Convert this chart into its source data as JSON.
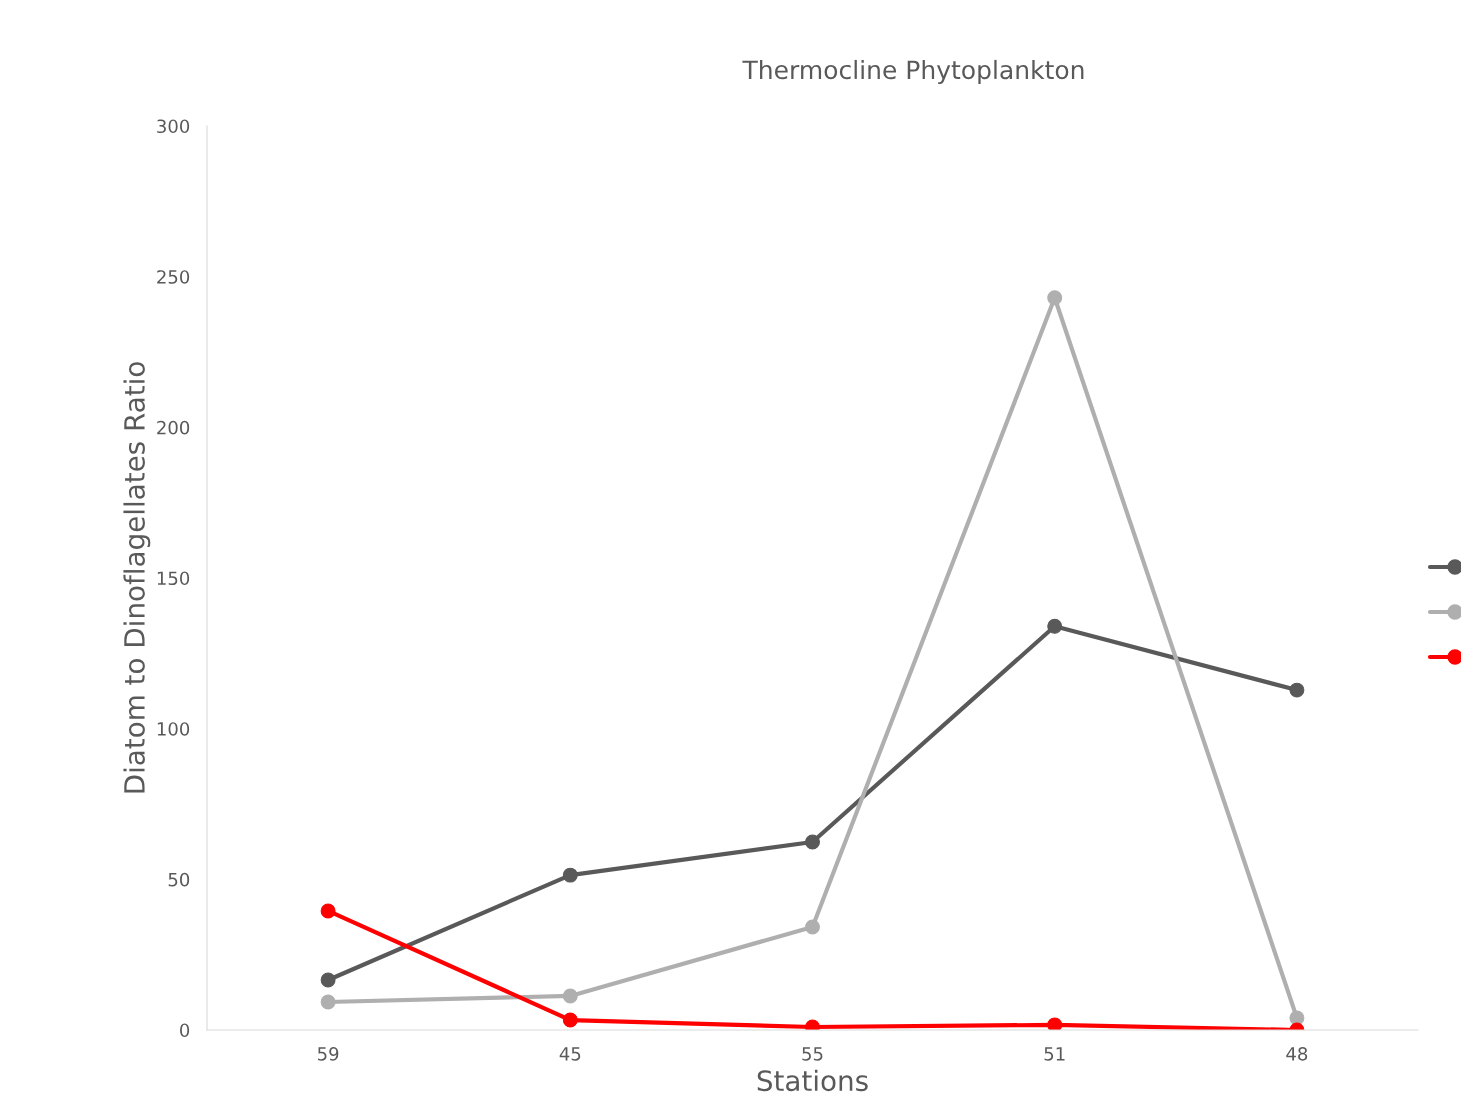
{
  "chart_data": {
    "type": "line",
    "title": "Thermocline Phytoplankton",
    "xlabel": "Stations",
    "ylabel": "Diatom to Dinoflagellates Ratio",
    "categories": [
      "59",
      "45",
      "55",
      "51",
      "48"
    ],
    "series": [
      {
        "color": "#595959",
        "values": [
          16.6,
          51.4,
          62.4,
          134,
          112.8
        ]
      },
      {
        "color": "#afafaf",
        "values": [
          9.3,
          11.3,
          34.2,
          243,
          4
        ]
      },
      {
        "color": "#ff0000",
        "values": [
          39.5,
          3.3,
          1,
          1.7,
          0
        ]
      }
    ],
    "ylim": [
      0,
      300
    ],
    "yticks": [
      0,
      50,
      100,
      150,
      200,
      250,
      300
    ],
    "grid": false,
    "marker": "circle",
    "line_style": "solid"
  }
}
